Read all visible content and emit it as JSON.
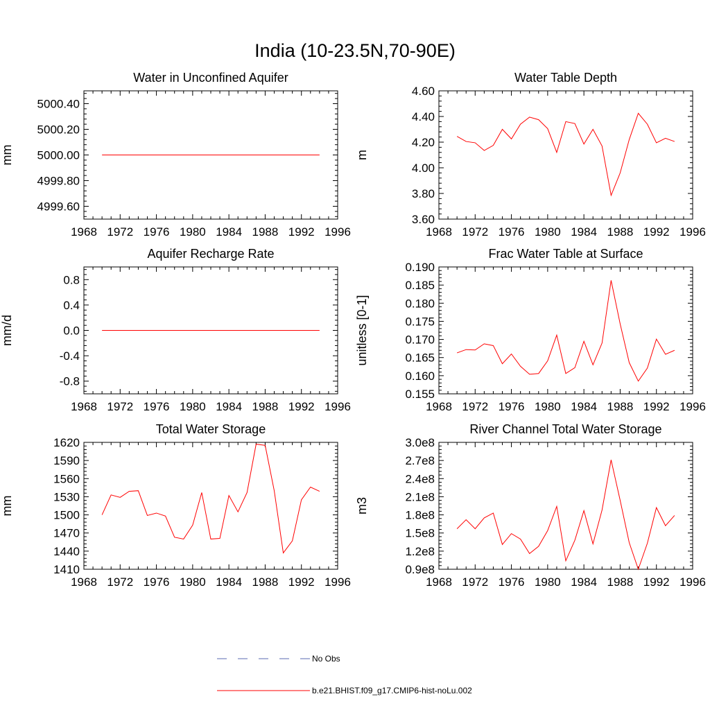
{
  "figure": {
    "title": "India (10-23.5N,70-90E)"
  },
  "colors": {
    "model_line": "#ff0000",
    "obs_line": "#5a6ab0",
    "axis": "#000000"
  },
  "legend": {
    "entries": [
      {
        "label": "No Obs",
        "style": "dashed",
        "color": "#5a6ab0"
      },
      {
        "label": "b.e21.BHIST.f09_g17.CMIP6-hist-noLu.002",
        "style": "solid",
        "color": "#ff0000"
      }
    ]
  },
  "chart_data": [
    {
      "id": "wa",
      "type": "line",
      "title": "Water in Unconfined Aquifer",
      "ylabel": "mm",
      "xlim": [
        1968,
        1996
      ],
      "xticks": [
        "1968",
        "1972",
        "1976",
        "1980",
        "1984",
        "1988",
        "1992",
        "1996"
      ],
      "ylim": [
        4999.5,
        5000.5
      ],
      "yticks": [
        "4999.60",
        "4999.80",
        "5000.00",
        "5000.20",
        "5000.40"
      ],
      "series": [
        {
          "x": [
            1970,
            1971,
            1972,
            1973,
            1974,
            1975,
            1976,
            1977,
            1978,
            1979,
            1980,
            1981,
            1982,
            1983,
            1984,
            1985,
            1986,
            1987,
            1988,
            1989,
            1990,
            1991,
            1992,
            1993,
            1994
          ],
          "y": [
            5000,
            5000,
            5000,
            5000,
            5000,
            5000,
            5000,
            5000,
            5000,
            5000,
            5000,
            5000,
            5000,
            5000,
            5000,
            5000,
            5000,
            5000,
            5000,
            5000,
            5000,
            5000,
            5000,
            5000,
            5000
          ]
        }
      ]
    },
    {
      "id": "zwt",
      "type": "line",
      "title": "Water Table Depth",
      "ylabel": "m",
      "xlim": [
        1968,
        1996
      ],
      "xticks": [
        "1968",
        "1972",
        "1976",
        "1980",
        "1984",
        "1988",
        "1992",
        "1996"
      ],
      "ylim": [
        3.6,
        4.6
      ],
      "yticks": [
        "3.60",
        "3.80",
        "4.00",
        "4.20",
        "4.40",
        "4.60"
      ],
      "series": [
        {
          "x": [
            1970,
            1971,
            1972,
            1973,
            1974,
            1975,
            1976,
            1977,
            1978,
            1979,
            1980,
            1981,
            1982,
            1983,
            1984,
            1985,
            1986,
            1987,
            1988,
            1989,
            1990,
            1991,
            1992,
            1993,
            1994
          ],
          "y": [
            4.245,
            4.205,
            4.195,
            4.135,
            4.175,
            4.3,
            4.225,
            4.34,
            4.395,
            4.375,
            4.305,
            4.12,
            4.36,
            4.345,
            4.185,
            4.3,
            4.17,
            3.785,
            3.96,
            4.22,
            4.425,
            4.34,
            4.195,
            4.23,
            4.205
          ]
        }
      ]
    },
    {
      "id": "qcharge",
      "type": "line",
      "title": "Aquifer Recharge Rate",
      "ylabel": "mm/d",
      "xlim": [
        1968,
        1996
      ],
      "xticks": [
        "1968",
        "1972",
        "1976",
        "1980",
        "1984",
        "1988",
        "1992",
        "1996"
      ],
      "ylim": [
        -1.0,
        1.0
      ],
      "yticks": [
        "-0.8",
        "-0.4",
        "0.0",
        "0.4",
        "0.8"
      ],
      "series": [
        {
          "x": [
            1970,
            1971,
            1972,
            1973,
            1974,
            1975,
            1976,
            1977,
            1978,
            1979,
            1980,
            1981,
            1982,
            1983,
            1984,
            1985,
            1986,
            1987,
            1988,
            1989,
            1990,
            1991,
            1992,
            1993,
            1994
          ],
          "y": [
            0,
            0,
            0,
            0,
            0,
            0,
            0,
            0,
            0,
            0,
            0,
            0,
            0,
            0,
            0,
            0,
            0,
            0,
            0,
            0,
            0,
            0,
            0,
            0,
            0
          ]
        }
      ]
    },
    {
      "id": "frac",
      "type": "line",
      "title": "Frac Water Table at Surface",
      "ylabel": "unitless [0-1]",
      "xlim": [
        1968,
        1996
      ],
      "xticks": [
        "1968",
        "1972",
        "1976",
        "1980",
        "1984",
        "1988",
        "1992",
        "1996"
      ],
      "ylim": [
        0.155,
        0.19
      ],
      "yticks": [
        "0.155",
        "0.160",
        "0.165",
        "0.170",
        "0.175",
        "0.180",
        "0.185",
        "0.190"
      ],
      "series": [
        {
          "x": [
            1970,
            1971,
            1972,
            1973,
            1974,
            1975,
            1976,
            1977,
            1978,
            1979,
            1980,
            1981,
            1982,
            1983,
            1984,
            1985,
            1986,
            1987,
            1988,
            1989,
            1990,
            1991,
            1992,
            1993,
            1994
          ],
          "y": [
            0.1663,
            0.1672,
            0.1671,
            0.1688,
            0.1683,
            0.1633,
            0.166,
            0.1626,
            0.1604,
            0.1606,
            0.1641,
            0.1712,
            0.1606,
            0.1622,
            0.1695,
            0.163,
            0.169,
            0.1863,
            0.1743,
            0.1636,
            0.1585,
            0.1621,
            0.1701,
            0.1659,
            0.167
          ]
        }
      ]
    },
    {
      "id": "tws",
      "type": "line",
      "title": "Total Water Storage",
      "ylabel": "mm",
      "xlim": [
        1968,
        1996
      ],
      "xticks": [
        "1968",
        "1972",
        "1976",
        "1980",
        "1984",
        "1988",
        "1992",
        "1996"
      ],
      "ylim": [
        1410,
        1620
      ],
      "yticks": [
        "1410",
        "1440",
        "1470",
        "1500",
        "1530",
        "1560",
        "1590",
        "1620"
      ],
      "series": [
        {
          "x": [
            1970,
            1971,
            1972,
            1973,
            1974,
            1975,
            1976,
            1977,
            1978,
            1979,
            1980,
            1981,
            1982,
            1983,
            1984,
            1985,
            1986,
            1987,
            1988,
            1989,
            1990,
            1991,
            1992,
            1993,
            1994
          ],
          "y": [
            1500,
            1533,
            1529,
            1539,
            1540,
            1499,
            1503,
            1498,
            1463,
            1460,
            1483,
            1537,
            1460,
            1461,
            1532,
            1505,
            1537,
            1617,
            1615,
            1540,
            1437,
            1457,
            1525,
            1546,
            1539
          ]
        }
      ]
    },
    {
      "id": "volr",
      "type": "line",
      "title": "River Channel Total Water Storage",
      "ylabel": "m3",
      "xlim": [
        1968,
        1996
      ],
      "xticks": [
        "1968",
        "1972",
        "1976",
        "1980",
        "1984",
        "1988",
        "1992",
        "1996"
      ],
      "ylim": [
        90000000.0,
        300000000.0
      ],
      "yticks": [
        "0.9e8",
        "1.2e8",
        "1.5e8",
        "1.8e8",
        "2.1e8",
        "2.4e8",
        "2.7e8",
        "3.0e8"
      ],
      "series": [
        {
          "x": [
            1970,
            1971,
            1972,
            1973,
            1974,
            1975,
            1976,
            1977,
            1978,
            1979,
            1980,
            1981,
            1982,
            1983,
            1984,
            1985,
            1986,
            1987,
            1988,
            1989,
            1990,
            1991,
            1992,
            1993,
            1994
          ],
          "y": [
            157000000.0,
            172000000.0,
            157000000.0,
            175000000.0,
            183000000.0,
            131000000.0,
            149000000.0,
            140000000.0,
            116000000.0,
            128000000.0,
            154000000.0,
            194000000.0,
            104000000.0,
            138000000.0,
            187000000.0,
            132000000.0,
            188000000.0,
            271000000.0,
            204000000.0,
            134000000.0,
            90000000.0,
            133000000.0,
            192000000.0,
            162000000.0,
            179000000.0
          ]
        }
      ]
    }
  ]
}
